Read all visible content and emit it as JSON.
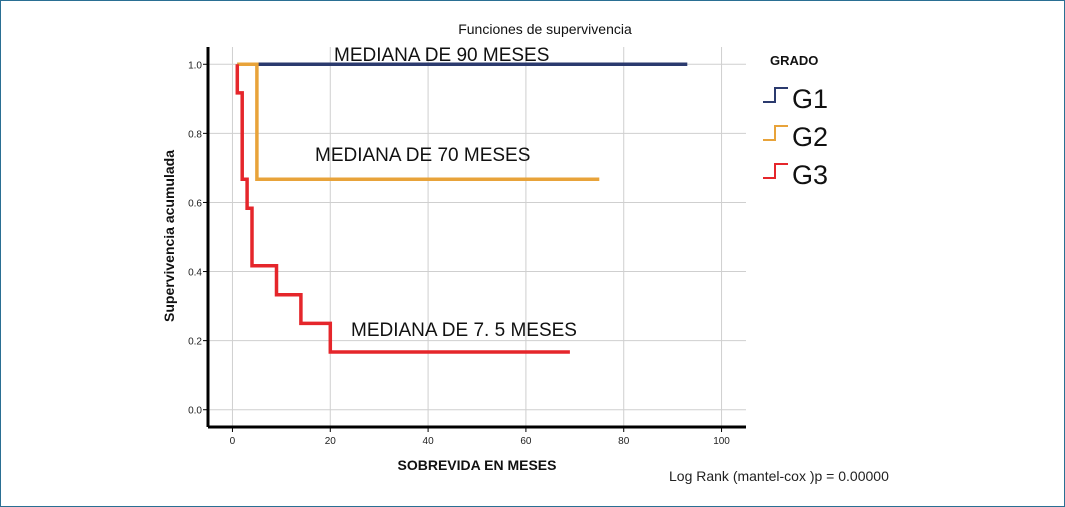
{
  "chart_data": {
    "type": "line",
    "subtype": "kaplan-meier-step",
    "title": "Funciones de supervivencia",
    "xlabel": "SOBREVIDA EN MESES",
    "ylabel": "Supervivencia acumulada",
    "xlim": [
      -5,
      105
    ],
    "ylim": [
      -0.05,
      1.05
    ],
    "xticks": [
      0,
      20,
      40,
      60,
      80,
      100
    ],
    "yticks": [
      0.0,
      0.2,
      0.4,
      0.6,
      0.8,
      1.0
    ],
    "ytick_labels": [
      "0.0",
      "0.2",
      "0.4",
      "0.6",
      "0.8",
      "1.0"
    ],
    "grid": true,
    "legend": {
      "title": "GRADO",
      "position": "right"
    },
    "series": [
      {
        "name": "G1",
        "color": "#2b3a6e",
        "x": [
          1,
          93
        ],
        "y": [
          1.0,
          1.0
        ]
      },
      {
        "name": "G2",
        "color": "#e8a33a",
        "x": [
          1,
          5,
          5,
          75
        ],
        "y": [
          1.0,
          1.0,
          0.667,
          0.667
        ]
      },
      {
        "name": "G3",
        "color": "#e5262b",
        "x": [
          1,
          1,
          2,
          2,
          3,
          3,
          4,
          4,
          9,
          9,
          14,
          14,
          20,
          20,
          69
        ],
        "y": [
          1.0,
          0.917,
          0.917,
          0.667,
          0.667,
          0.583,
          0.583,
          0.417,
          0.417,
          0.333,
          0.333,
          0.25,
          0.25,
          0.167,
          0.167
        ]
      }
    ],
    "annotations": [
      {
        "text": "MEDIANA DE 90 MESES"
      },
      {
        "text": "MEDIANA DE 70 MESES"
      },
      {
        "text": "MEDIANA DE 7. 5 MESES"
      }
    ],
    "footnote": "Log Rank  (mantel-cox )p = 0.00000"
  }
}
